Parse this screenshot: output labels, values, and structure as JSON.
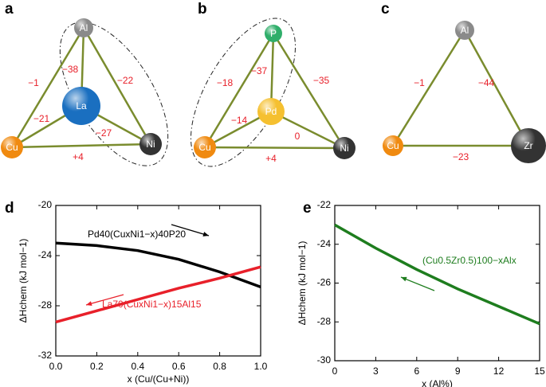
{
  "diagrams": [
    {
      "panel": "a",
      "nodes": [
        {
          "label": "Al"
        },
        {
          "label": "Cu"
        },
        {
          "label": "Ni"
        },
        {
          "label": "La"
        }
      ],
      "edges": [
        {
          "label": "−1"
        },
        {
          "label": "−38"
        },
        {
          "label": "−22"
        },
        {
          "label": "−21"
        },
        {
          "label": "−27"
        },
        {
          "label": "+4"
        }
      ]
    },
    {
      "panel": "b",
      "nodes": [
        {
          "label": "P"
        },
        {
          "label": "Cu"
        },
        {
          "label": "Ni"
        },
        {
          "label": "Pd"
        }
      ],
      "edges": [
        {
          "label": "−18"
        },
        {
          "label": "−37"
        },
        {
          "label": "−35"
        },
        {
          "label": "−14"
        },
        {
          "label": "0"
        },
        {
          "label": "+4"
        }
      ]
    },
    {
      "panel": "c",
      "nodes": [
        {
          "label": "Al"
        },
        {
          "label": "Cu"
        },
        {
          "label": "Zr"
        }
      ],
      "edges": [
        {
          "label": "−1"
        },
        {
          "label": "−44"
        },
        {
          "label": "−23"
        }
      ]
    }
  ],
  "chart_data": [
    {
      "type": "line",
      "panel": "d",
      "x_label": "x (Cu/(Cu+Ni))",
      "y_label": "ΔHchem (kJ mol−1)",
      "x": [
        0,
        0.2,
        0.4,
        0.6,
        0.8,
        1.0
      ],
      "series": [
        {
          "name": "Pd40(CuxNi1−x)40P20",
          "color": "#000000",
          "values": [
            -23.0,
            -23.2,
            -23.6,
            -24.3,
            -25.3,
            -26.5
          ]
        },
        {
          "name": "La70(CuxNi1−x)15Al15",
          "color": "#e8202a",
          "values": [
            -29.3,
            -28.4,
            -27.5,
            -26.6,
            -25.8,
            -24.9
          ]
        }
      ],
      "xlim": [
        0,
        1
      ],
      "xticks": [
        {
          "value": 0,
          "label": "0.0"
        },
        {
          "value": 0.2,
          "label": "0.2"
        },
        {
          "value": 0.4,
          "label": "0.4"
        },
        {
          "value": 0.6,
          "label": "0.6"
        },
        {
          "value": 0.8,
          "label": "0.8"
        },
        {
          "value": 1,
          "label": "1.0"
        }
      ],
      "ylim": [
        -32,
        -20
      ],
      "yticks": [
        -32,
        -28,
        -24,
        -20
      ]
    },
    {
      "type": "line",
      "panel": "e",
      "x_label": "x (Al%)",
      "y_label": "ΔHchem (kJ mol−1)",
      "x": [
        0,
        3,
        6,
        9,
        12,
        15
      ],
      "series": [
        {
          "name": "(Cu0.5Zr0.5)100−xAlx",
          "color": "#1e7d1e",
          "values": [
            -23.0,
            -24.2,
            -25.3,
            -26.3,
            -27.2,
            -28.1
          ]
        }
      ],
      "xlim": [
        0,
        15
      ],
      "xticks": [
        0,
        3,
        6,
        9,
        12,
        15
      ],
      "ylim": [
        -30,
        -22
      ],
      "yticks": [
        -30,
        -28,
        -26,
        -24,
        -22
      ]
    }
  ]
}
